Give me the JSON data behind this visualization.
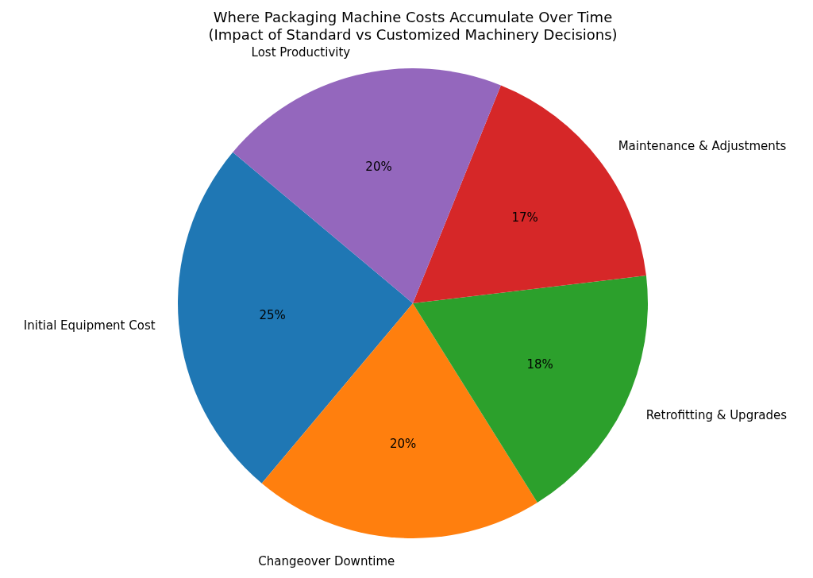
{
  "chart_data": {
    "type": "pie",
    "title": "Where Packaging Machine Costs Accumulate Over Time",
    "subtitle": "(Impact of Standard vs Customized Machinery Decisions)",
    "categories": [
      "Initial Equipment Cost",
      "Changeover Downtime",
      "Retrofitting & Upgrades",
      "Maintenance & Adjustments",
      "Lost Productivity"
    ],
    "values": [
      25,
      20,
      18,
      17,
      20
    ],
    "value_labels": [
      "25%",
      "20%",
      "18%",
      "17%",
      "20%"
    ],
    "colors": [
      "#1f77b4",
      "#ff7f0e",
      "#2ca02c",
      "#d62728",
      "#9467bd"
    ]
  }
}
